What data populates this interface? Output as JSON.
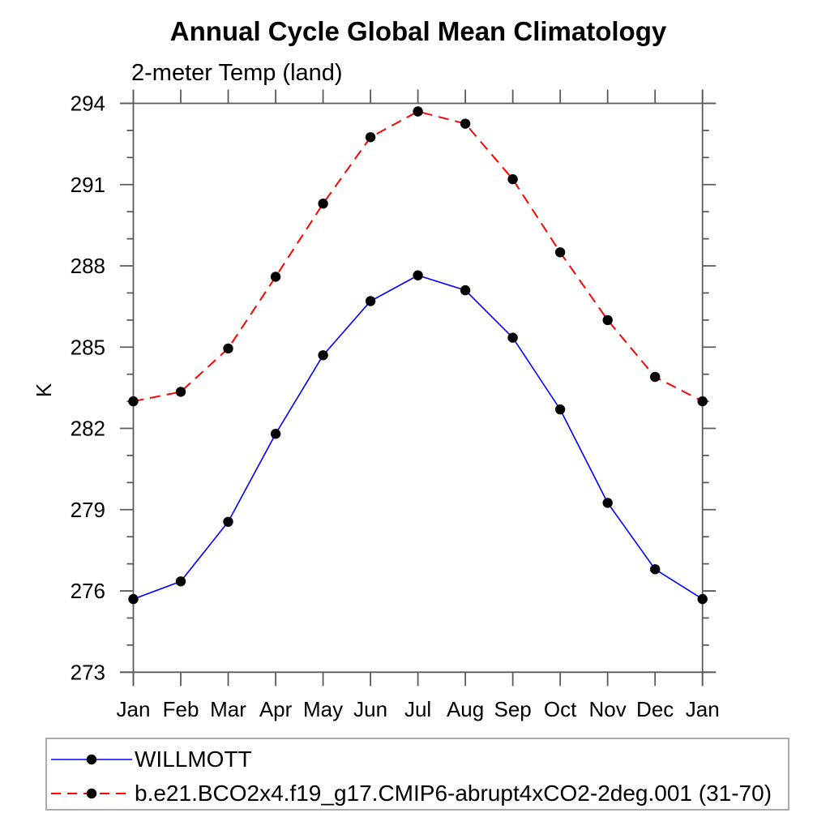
{
  "title": "Annual Cycle Global Mean Climatology",
  "subtitle": "2-meter Temp (land)",
  "ylabel": "K",
  "colors": {
    "axis": "#5a5a5a",
    "text": "#000000",
    "marker": "#000000",
    "series_blue": "#0000ff",
    "series_red": "#ff0000",
    "legend_border": "#ababab",
    "background": "#ffffff"
  },
  "chart_data": {
    "type": "line",
    "categories": [
      "Jan",
      "Feb",
      "Mar",
      "Apr",
      "May",
      "Jun",
      "Jul",
      "Aug",
      "Sep",
      "Oct",
      "Nov",
      "Dec",
      "Jan"
    ],
    "series": [
      {
        "name": "WILLMOTT",
        "color": "#0000ff",
        "line": "solid",
        "line_width": 1.6,
        "marker": "circle",
        "marker_color": "#000000",
        "values": [
          275.7,
          276.35,
          278.55,
          281.8,
          284.7,
          286.7,
          287.65,
          287.1,
          285.35,
          282.7,
          279.25,
          276.8,
          275.7
        ]
      },
      {
        "name": "b.e21.BCO2x4.f19_g17.CMIP6-abrupt4xCO2-2deg.001 (31-70)",
        "color": "#ff0000",
        "line": "dashed",
        "line_width": 2,
        "dash": "13 8",
        "marker": "circle",
        "marker_color": "#000000",
        "values": [
          283.0,
          283.35,
          284.95,
          287.6,
          290.3,
          292.75,
          293.7,
          293.25,
          291.2,
          288.5,
          286.0,
          283.9,
          283.0
        ]
      }
    ],
    "xlabel": "",
    "ylabel": "K",
    "ylim": [
      273,
      294
    ],
    "yticks": [
      273,
      276,
      279,
      282,
      285,
      288,
      291,
      294
    ],
    "ytick_minor_step": 1,
    "grid": "off",
    "legend_position": "bottom"
  }
}
